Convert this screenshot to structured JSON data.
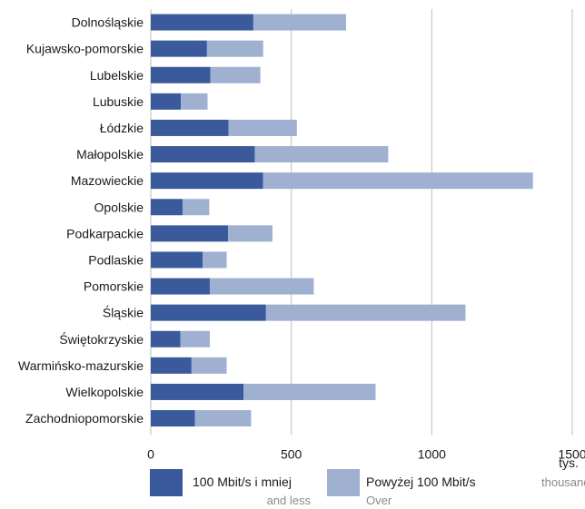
{
  "chart_data": {
    "type": "bar",
    "orientation": "horizontal",
    "stacked": true,
    "categories": [
      "Dolnośląskie",
      "Kujawsko-pomorskie",
      "Lubelskie",
      "Lubuskie",
      "Łódzkie",
      "Małopolskie",
      "Mazowieckie",
      "Opolskie",
      "Podkarpackie",
      "Podlaskie",
      "Pomorskie",
      "Śląskie",
      "Świętokrzyskie",
      "Warmińsko-mazurskie",
      "Wielkopolskie",
      "Zachodniopomorskie"
    ],
    "series": [
      {
        "name": "100 Mbit/s i mniej",
        "name_sub": "and less",
        "color": "#3a5a9c",
        "values": [
          365,
          200,
          212,
          107,
          277,
          370,
          400,
          113,
          275,
          185,
          210,
          410,
          105,
          145,
          330,
          157
        ]
      },
      {
        "name": "Powyżej 100 Mbit/s",
        "name_sub": "Over",
        "color": "#9fb0d1",
        "values": [
          330,
          200,
          178,
          95,
          243,
          475,
          960,
          95,
          158,
          85,
          370,
          710,
          105,
          125,
          470,
          200
        ]
      }
    ],
    "xlim": [
      0,
      1500
    ],
    "xticks": [
      "0",
      "500",
      "1000",
      "1500"
    ],
    "xticks_values": [
      0,
      500,
      1000,
      1500
    ],
    "unit_main": "tys.",
    "unit_sub": "thousands",
    "grid": true,
    "legend_position": "bottom"
  }
}
